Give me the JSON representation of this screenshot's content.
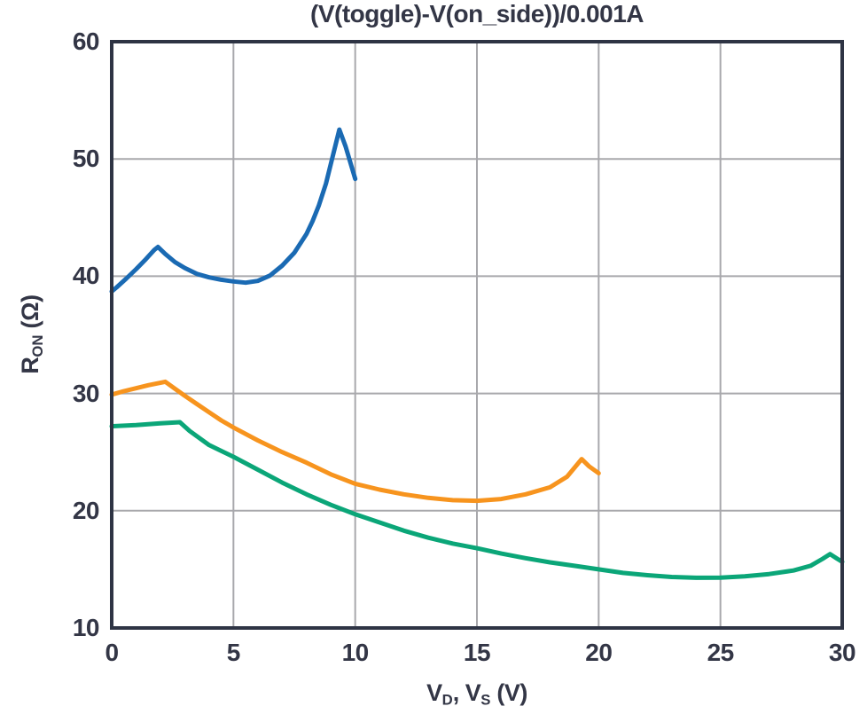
{
  "page": {
    "background_color": "#ffffff",
    "text_color": "#333646"
  },
  "chart_data": {
    "type": "line",
    "title": "(V(toggle)-V(on_side))/0.001A",
    "xlabel": "V_D, V_S (V)",
    "ylabel": "R_ON (Ω)",
    "xlabel_parts": [
      [
        "text",
        "V"
      ],
      [
        "sub",
        "D"
      ],
      [
        "text",
        ", V"
      ],
      [
        "sub",
        "S"
      ],
      [
        "text",
        " (V)"
      ]
    ],
    "ylabel_parts": [
      [
        "text",
        "R"
      ],
      [
        "sub",
        "ON"
      ],
      [
        "text",
        " (Ω)"
      ]
    ],
    "xlim": [
      0,
      30
    ],
    "ylim": [
      10,
      60
    ],
    "x_ticks": [
      0,
      5,
      10,
      15,
      20,
      25,
      30
    ],
    "y_ticks": [
      10,
      20,
      30,
      40,
      50,
      60
    ],
    "grid": true,
    "legend": "none",
    "frame_color": "#2e3444",
    "grid_color": "#a8a8ac",
    "series": [
      {
        "name": "blue-series",
        "color": "#1a6ab3",
        "points": [
          [
            0,
            38.7
          ],
          [
            0.2,
            39.05
          ],
          [
            0.6,
            39.8
          ],
          [
            1.0,
            40.6
          ],
          [
            1.4,
            41.45
          ],
          [
            1.75,
            42.25
          ],
          [
            1.9,
            42.5
          ],
          [
            2.2,
            41.9
          ],
          [
            2.6,
            41.2
          ],
          [
            3.0,
            40.7
          ],
          [
            3.5,
            40.2
          ],
          [
            4.0,
            39.9
          ],
          [
            4.5,
            39.7
          ],
          [
            5.0,
            39.55
          ],
          [
            5.5,
            39.45
          ],
          [
            6.0,
            39.6
          ],
          [
            6.5,
            40.05
          ],
          [
            7.0,
            40.9
          ],
          [
            7.5,
            42.0
          ],
          [
            8.0,
            43.6
          ],
          [
            8.25,
            44.7
          ],
          [
            8.5,
            46.0
          ],
          [
            8.8,
            47.9
          ],
          [
            9.1,
            50.4
          ],
          [
            9.35,
            52.5
          ],
          [
            9.6,
            51.1
          ],
          [
            9.8,
            49.7
          ],
          [
            10.0,
            48.3
          ]
        ]
      },
      {
        "name": "orange-series",
        "color": "#f7941e",
        "points": [
          [
            0,
            29.9
          ],
          [
            0.5,
            30.2
          ],
          [
            1.0,
            30.45
          ],
          [
            1.5,
            30.7
          ],
          [
            2.2,
            31.0
          ],
          [
            2.6,
            30.4
          ],
          [
            3.0,
            29.8
          ],
          [
            3.5,
            29.1
          ],
          [
            4.0,
            28.4
          ],
          [
            4.5,
            27.7
          ],
          [
            5.0,
            27.1
          ],
          [
            6.0,
            26.0
          ],
          [
            7.0,
            25.0
          ],
          [
            8.0,
            24.1
          ],
          [
            9.0,
            23.1
          ],
          [
            10.0,
            22.3
          ],
          [
            11.0,
            21.8
          ],
          [
            12.0,
            21.4
          ],
          [
            13.0,
            21.1
          ],
          [
            14.0,
            20.9
          ],
          [
            15.0,
            20.85
          ],
          [
            16.0,
            21.0
          ],
          [
            17.0,
            21.4
          ],
          [
            18.0,
            22.0
          ],
          [
            18.7,
            22.9
          ],
          [
            19.3,
            24.4
          ],
          [
            19.6,
            23.8
          ],
          [
            20.0,
            23.2
          ]
        ]
      },
      {
        "name": "green-series",
        "color": "#0ba678",
        "points": [
          [
            0,
            27.2
          ],
          [
            1.0,
            27.3
          ],
          [
            2.0,
            27.45
          ],
          [
            2.8,
            27.55
          ],
          [
            3.2,
            26.8
          ],
          [
            4.0,
            25.6
          ],
          [
            5.0,
            24.6
          ],
          [
            6.0,
            23.5
          ],
          [
            7.0,
            22.4
          ],
          [
            8.0,
            21.4
          ],
          [
            9.0,
            20.5
          ],
          [
            10.0,
            19.7
          ],
          [
            11.0,
            19.0
          ],
          [
            12.0,
            18.3
          ],
          [
            13.0,
            17.7
          ],
          [
            14.0,
            17.2
          ],
          [
            15.0,
            16.8
          ],
          [
            16.0,
            16.35
          ],
          [
            17.0,
            15.95
          ],
          [
            18.0,
            15.6
          ],
          [
            19.0,
            15.3
          ],
          [
            20.0,
            15.0
          ],
          [
            21.0,
            14.7
          ],
          [
            22.0,
            14.5
          ],
          [
            23.0,
            14.35
          ],
          [
            24.0,
            14.28
          ],
          [
            25.0,
            14.3
          ],
          [
            26.0,
            14.4
          ],
          [
            27.0,
            14.6
          ],
          [
            28.0,
            14.9
          ],
          [
            28.7,
            15.3
          ],
          [
            29.2,
            15.9
          ],
          [
            29.5,
            16.3
          ],
          [
            29.8,
            15.9
          ],
          [
            30.0,
            15.65
          ]
        ]
      }
    ]
  }
}
